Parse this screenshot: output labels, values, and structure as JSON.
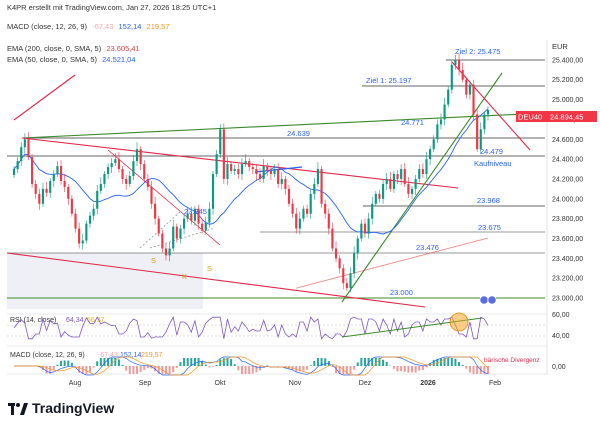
{
  "header": {
    "credit": "K4PR erstellt mit TradingView.com, Jan 27, 2026 18:25 UTC+1",
    "macd_top": {
      "label": "MACD (close, 12, 26, 9)",
      "v1": "-67,43",
      "v2": "152,14",
      "v3": "219,57"
    },
    "ema200": {
      "label": "EMA (200, close, 0, SMA, 5)",
      "value": "23.605,41"
    },
    "ema50": {
      "label": "EMA (50, close, 0, SMA, 5)",
      "value": "24.521,04"
    }
  },
  "colors": {
    "up": "#089981",
    "down": "#f23645",
    "ema200": "#e04040",
    "ema50": "#2962ff",
    "green_line": "#3a8a2a",
    "red_line": "#e0284a",
    "ticker_bg": "#f23645"
  },
  "currency": "EUR",
  "ticker": {
    "symbol": "DEU40",
    "price": "24.894,45"
  },
  "chart_data": {
    "type": "candlestick",
    "ylim": [
      22900,
      25600
    ],
    "y_ticks": [
      "25.400,00",
      "25.200,00",
      "25.000,00",
      "24.800,00",
      "24.600,00",
      "24.400,00",
      "24.200,00",
      "24.000,00",
      "23.800,00",
      "23.600,00",
      "23.400,00",
      "23.200,00",
      "23.000,00"
    ],
    "x_ticks": [
      "Aug",
      "Sep",
      "Okt",
      "Nov",
      "Dez",
      "2026",
      "Feb"
    ],
    "closes": [
      24300,
      24380,
      24520,
      24600,
      24420,
      24150,
      24050,
      23950,
      24100,
      24060,
      24180,
      24250,
      24330,
      24180,
      24120,
      24000,
      23850,
      23700,
      23550,
      23580,
      23750,
      23830,
      23900,
      24080,
      24150,
      24250,
      24320,
      24360,
      24400,
      24300,
      24200,
      24150,
      24230,
      24380,
      24500,
      24350,
      24200,
      24120,
      23950,
      23800,
      23650,
      23500,
      23430,
      23500,
      23720,
      23600,
      23700,
      23800,
      23850,
      23780,
      23900,
      23750,
      23680,
      23760,
      23900,
      24250,
      24450,
      24700,
      24200,
      24350,
      24280,
      24300,
      24250,
      24350,
      24380,
      24320,
      24300,
      24250,
      24200,
      24330,
      24280,
      24250,
      24300,
      24150,
      24200,
      24100,
      23950,
      23850,
      23700,
      23800,
      23900,
      23850,
      24050,
      24150,
      24300,
      23950,
      23850,
      23700,
      23500,
      23400,
      23300,
      23150,
      23100,
      23250,
      23450,
      23600,
      23750,
      23650,
      23800,
      23950,
      24050,
      24000,
      24150,
      24200,
      24100,
      24250,
      24200,
      24300,
      24150,
      24050,
      24100,
      24200,
      24300,
      24250,
      24400,
      24500,
      24600,
      24750,
      24800,
      24950,
      25100,
      25350,
      25400,
      25300,
      25200,
      25050,
      25150,
      24850,
      24500,
      24700,
      24850,
      24894
    ],
    "levels": {
      "ziel2": "Ziel 2: 25.475",
      "ziel1": "Ziel 1: 25.197",
      "l24771": "24.771",
      "l24639": "24.639",
      "l24479": "24.479",
      "kaufniveau": "Kaufniveau",
      "l23968": "23.968",
      "l23845": "23.845",
      "l23675": "23.675",
      "l23476": "23.476",
      "l23000": "23.000"
    },
    "pattern_labels": [
      "S",
      "K",
      "S"
    ],
    "rsi": {
      "label": "RSI (14, close)",
      "value": "64,34",
      "ma": "56,37",
      "ticks": [
        "60,00",
        "40,00"
      ]
    },
    "macd": {
      "label": "MACD (close, 12, 26, 9)",
      "v1": "-67,43",
      "v2": "152,14",
      "v3": "219,57",
      "note": "bärische Divergenz",
      "ticks": [
        "0,00"
      ]
    }
  },
  "footer": {
    "brand": "TradingView"
  }
}
